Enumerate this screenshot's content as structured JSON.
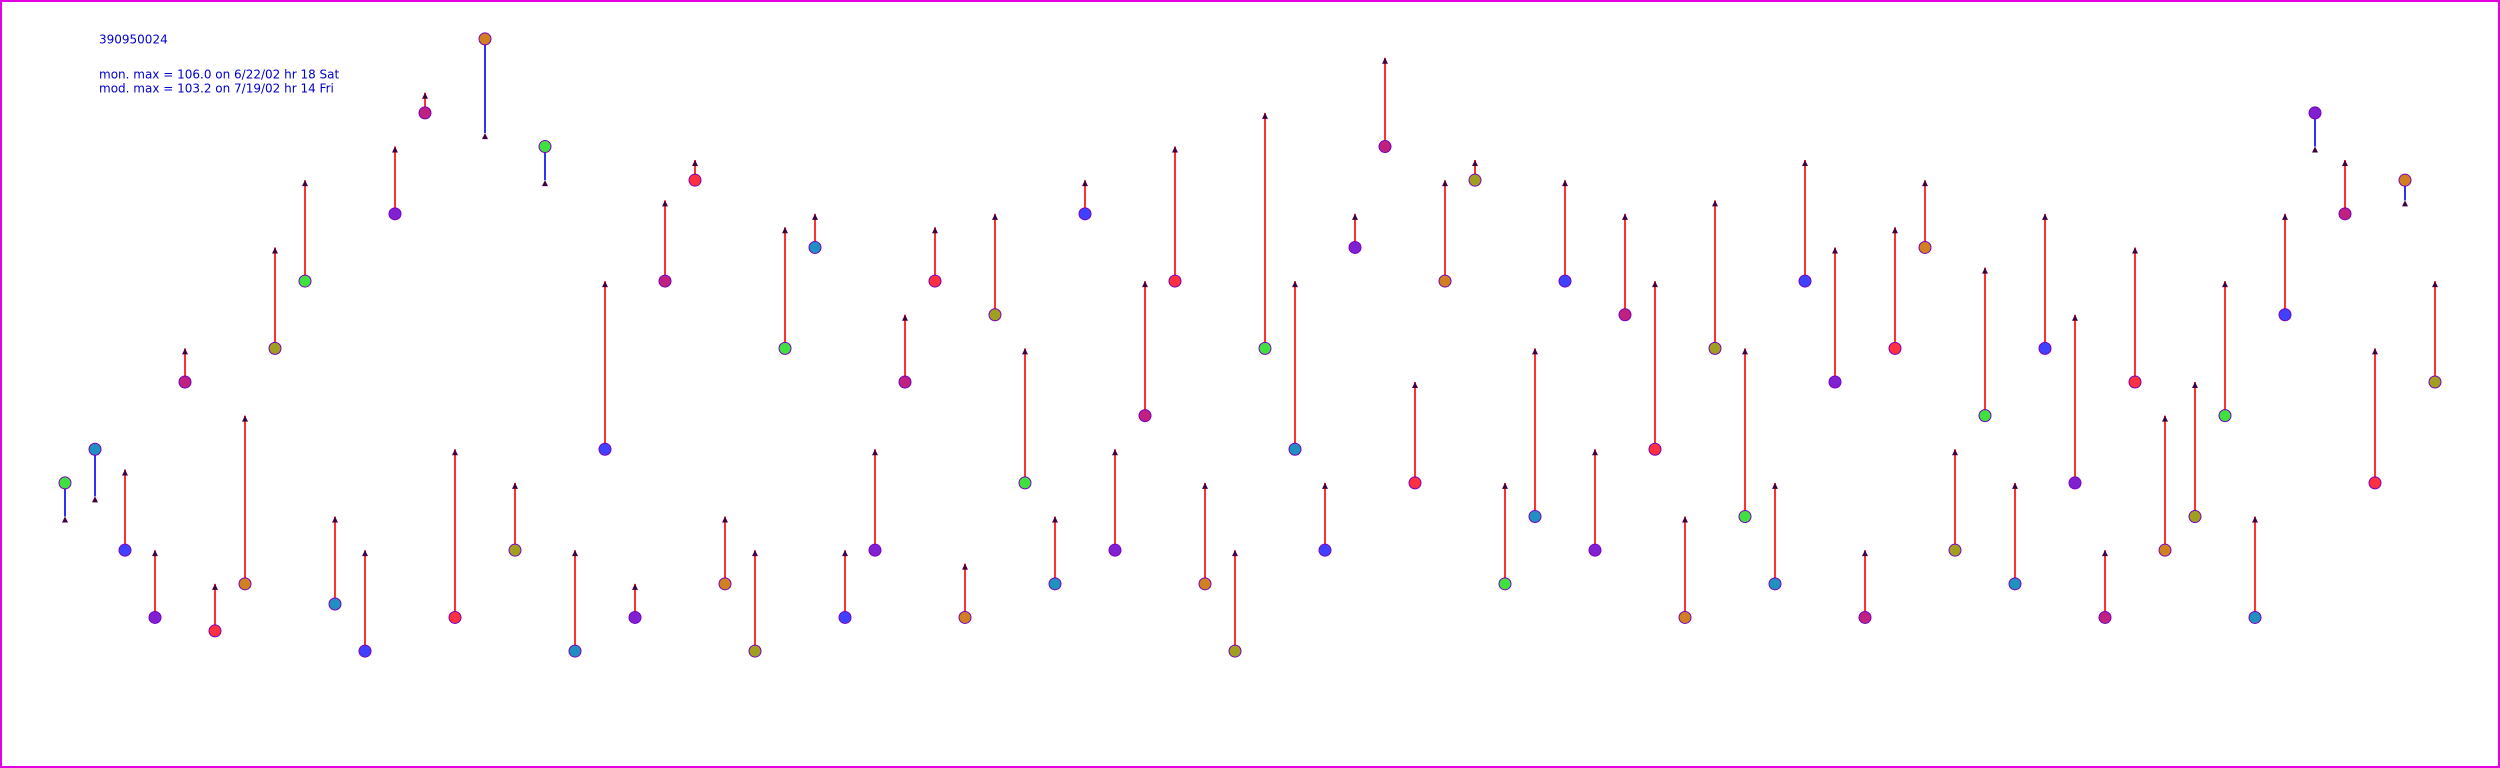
{
  "chart_data": {
    "type": "paired-dot",
    "title": "390950024",
    "annotations": [
      "mon. max =  106.0 on 6/22/02 hr 18 Sat",
      "mod. max =  103.2 on 7/19/02 hr 14 Fri"
    ],
    "series": [
      {
        "color": "#7a00c0",
        "values": [
          40,
          45,
          30,
          20,
          55,
          18,
          25,
          60,
          70,
          22,
          15,
          80,
          95,
          20,
          106,
          30,
          90,
          15,
          45,
          20,
          70,
          85,
          25,
          15,
          60,
          75,
          20,
          30,
          55,
          70,
          20,
          65,
          40,
          25,
          80,
          30,
          50,
          70,
          25,
          15,
          60,
          45,
          30,
          75,
          90,
          40,
          70,
          85,
          25,
          35,
          70,
          30,
          65,
          45,
          20,
          60,
          35,
          25,
          70,
          55,
          20,
          60,
          75,
          30,
          50,
          25,
          60,
          40,
          20,
          55,
          30,
          35,
          50,
          20,
          65,
          95,
          80,
          40,
          85,
          55
        ]
      },
      {
        "color": "#400040",
        "values": [
          35,
          38,
          42,
          30,
          60,
          25,
          50,
          75,
          85,
          35,
          30,
          90,
          98,
          45,
          92,
          40,
          85,
          30,
          70,
          25,
          82,
          88,
          35,
          30,
          78,
          80,
          30,
          45,
          65,
          78,
          28,
          80,
          60,
          35,
          85,
          45,
          70,
          90,
          40,
          30,
          95,
          70,
          40,
          80,
          103.2,
          55,
          85,
          88,
          40,
          60,
          85,
          45,
          80,
          70,
          35,
          82,
          60,
          40,
          88,
          75,
          30,
          78,
          85,
          45,
          72,
          40,
          80,
          65,
          30,
          75,
          50,
          55,
          70,
          35,
          80,
          90,
          88,
          60,
          82,
          70
        ]
      }
    ],
    "over_color": "#ff3030",
    "under_color": "#3030ff",
    "marker_colors": [
      "#40e040",
      "#2090c0",
      "#4040ff",
      "#8020d0",
      "#c02080",
      "#ff3040",
      "#d08020",
      "#a0a020"
    ],
    "ylim": [
      0,
      110
    ]
  }
}
